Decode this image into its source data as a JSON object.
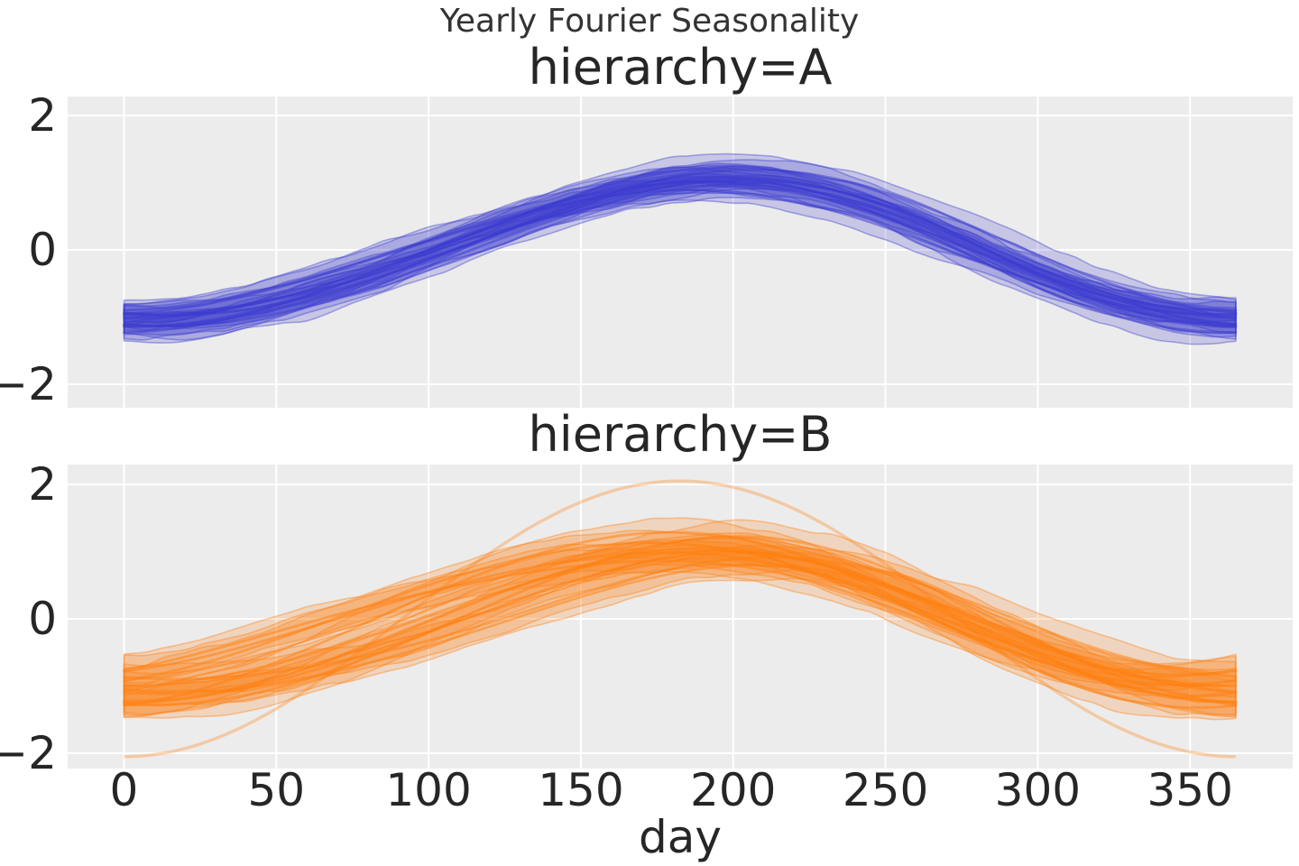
{
  "figure": {
    "suptitle": "Yearly Fourier Seasonality",
    "xlabel": "day",
    "background": "#ffffff",
    "axes_bg": "#ececec",
    "grid_color": "#ffffff",
    "text_color": "#262626"
  },
  "chart_data": {
    "type": "line",
    "title": "Yearly Fourier Seasonality",
    "xlabel": "day",
    "grid": true,
    "legend": "none",
    "x_range_days": [
      0,
      365
    ],
    "xlim": [
      -18.5,
      383.7
    ],
    "ylim": [
      -2.3,
      2.3
    ],
    "x_ticks": [
      {
        "value": 0,
        "label": "0"
      },
      {
        "value": 50,
        "label": "50"
      },
      {
        "value": 100,
        "label": "100"
      },
      {
        "value": 150,
        "label": "150"
      },
      {
        "value": 200,
        "label": "200"
      },
      {
        "value": 250,
        "label": "250"
      },
      {
        "value": 300,
        "label": "300"
      },
      {
        "value": 350,
        "label": "350"
      }
    ],
    "y_ticks": [
      {
        "value": 2,
        "label": "2"
      },
      {
        "value": 0,
        "label": "0"
      },
      {
        "value": -2,
        "label": "−2"
      }
    ],
    "model": "y(day) = offset - amplitude*cos(2*pi*(day - peak_shift_days)/365) + second_harmonic*sin(4*pi*day/365); each sampled curve is drawn with a wiggly HDI band of +/- band_halfwidth",
    "subplots": [
      {
        "title": "hierarchy=A",
        "color": "#3939cf",
        "band_alpha": 0.2,
        "band_edge_alpha": 0.4,
        "line_alpha": 0.5,
        "band_halfwidth": 0.17,
        "envelope_day0_range": [
          -1.4,
          -0.65
        ],
        "envelope_peak_range": [
          0.7,
          1.45
        ],
        "peak_day_range": [
          170,
          200
        ],
        "series": [
          {
            "offset": 0.0,
            "amplitude": 1.02,
            "peak_shift_days": 8,
            "second_harmonic": 0.04
          },
          {
            "offset": -0.05,
            "amplitude": 1.1,
            "peak_shift_days": 13,
            "second_harmonic": 0.06
          },
          {
            "offset": 0.05,
            "amplitude": 0.95,
            "peak_shift_days": 2,
            "second_harmonic": 0.05
          },
          {
            "offset": -0.1,
            "amplitude": 1.05,
            "peak_shift_days": 16,
            "second_harmonic": 0.03
          },
          {
            "offset": 0.02,
            "amplitude": 1.18,
            "peak_shift_days": 10,
            "second_harmonic": 0.07
          },
          {
            "offset": -0.03,
            "amplitude": 0.92,
            "peak_shift_days": -2,
            "second_harmonic": 0.04
          },
          {
            "offset": 0.08,
            "amplitude": 1.08,
            "peak_shift_days": 20,
            "second_harmonic": 0.05
          },
          {
            "offset": -0.08,
            "amplitude": 1.15,
            "peak_shift_days": 4,
            "second_harmonic": 0.06
          },
          {
            "offset": 0.0,
            "amplitude": 1.0,
            "peak_shift_days": 14,
            "second_harmonic": 0.08
          }
        ],
        "extra_series": []
      },
      {
        "title": "hierarchy=B",
        "color": "#ff7f0e",
        "band_alpha": 0.2,
        "band_edge_alpha": 0.4,
        "line_alpha": 0.5,
        "band_halfwidth": 0.2,
        "envelope_day0_range": [
          -1.5,
          -0.55
        ],
        "envelope_peak_range": [
          0.5,
          1.55
        ],
        "peak_day_range": [
          165,
          205
        ],
        "series": [
          {
            "offset": 0.0,
            "amplitude": 1.0,
            "peak_shift_days": 5,
            "second_harmonic": 0.05
          },
          {
            "offset": -0.15,
            "amplitude": 1.1,
            "peak_shift_days": 10,
            "second_harmonic": 0.08
          },
          {
            "offset": 0.1,
            "amplitude": 0.9,
            "peak_shift_days": -12,
            "second_harmonic": 0.06
          },
          {
            "offset": -0.05,
            "amplitude": 1.25,
            "peak_shift_days": 15,
            "second_harmonic": 0.05
          },
          {
            "offset": 0.05,
            "amplitude": 0.85,
            "peak_shift_days": -18,
            "second_harmonic": 0.09
          },
          {
            "offset": -0.1,
            "amplitude": 1.15,
            "peak_shift_days": 5,
            "second_harmonic": 0.04
          },
          {
            "offset": 0.0,
            "amplitude": 1.3,
            "peak_shift_days": -8,
            "second_harmonic": 0.06
          },
          {
            "offset": -0.2,
            "amplitude": 0.95,
            "peak_shift_days": 20,
            "second_harmonic": 0.07
          },
          {
            "offset": 0.1,
            "amplitude": 1.05,
            "peak_shift_days": -15,
            "second_harmonic": 0.05
          },
          {
            "offset": -0.05,
            "amplitude": 0.9,
            "peak_shift_days": 25,
            "second_harmonic": 0.08
          }
        ],
        "extra_series": [
          {
            "offset": 0.0,
            "amplitude": 2.05,
            "peak_shift_days": 0,
            "second_harmonic": 0.0,
            "note": "single smooth high-amplitude sinusoid from (0,-2.05) peaking at (182,2.05) back to (365,-2.05)"
          }
        ]
      }
    ]
  }
}
